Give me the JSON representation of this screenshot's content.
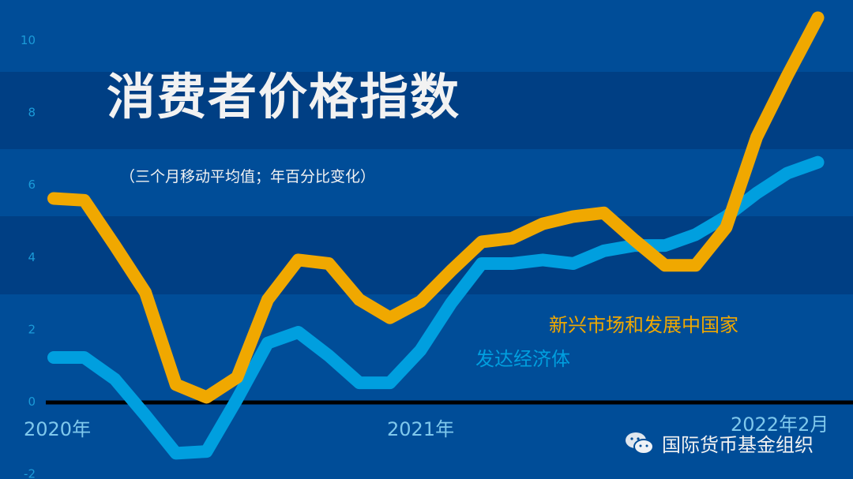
{
  "chart_data": {
    "type": "line",
    "title": "消费者价格指数",
    "subtitle": "（三个月移动平均值；年百分比变化）",
    "ylim": [
      -2,
      10.6
    ],
    "yticks": [
      "10",
      "8",
      "6",
      "4",
      "2",
      "0",
      "-2"
    ],
    "xtick_labels": [
      "2020年",
      "2021年",
      "2022年2月"
    ],
    "grid": "alternating horizontal bands",
    "colors": {
      "background": "#004d98",
      "band": "#003f84",
      "emerging": "#f0a800",
      "advanced": "#009fdf",
      "axis": "#000000",
      "tick": "#1b9bd8"
    },
    "series": [
      {
        "name": "新兴市场和发展中国家",
        "values": [
          5.6,
          5.55,
          4.3,
          3.0,
          0.45,
          0.1,
          0.65,
          2.8,
          3.9,
          3.8,
          2.8,
          2.3,
          2.75,
          3.6,
          4.4,
          4.5,
          4.9,
          5.1,
          5.2,
          4.45,
          3.75,
          3.75,
          4.8,
          7.3,
          9.0,
          10.6
        ]
      },
      {
        "name": "发达经济体",
        "values": [
          1.2,
          1.2,
          0.6,
          -0.4,
          -1.45,
          -1.4,
          0.05,
          1.6,
          1.9,
          1.25,
          0.5,
          0.5,
          1.4,
          2.7,
          3.8,
          3.8,
          3.9,
          3.8,
          4.15,
          4.3,
          4.3,
          4.6,
          5.1,
          5.75,
          6.3,
          6.6
        ]
      }
    ]
  },
  "watermark": {
    "text": "国际货币基金组织",
    "icon": "wechat-icon"
  }
}
